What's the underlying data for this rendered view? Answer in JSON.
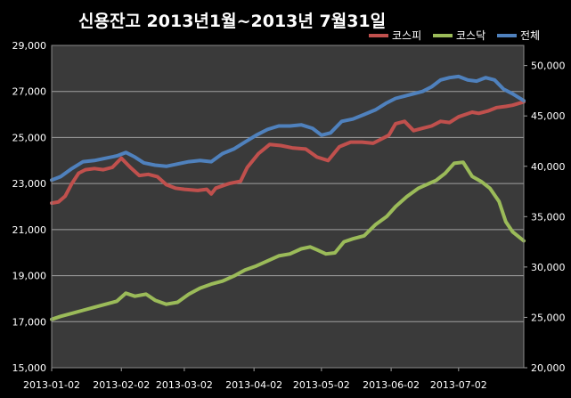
{
  "chart_data": {
    "type": "line",
    "title": "신용잔고 2013년1월~2013년 7월31일",
    "x_tick_labels": [
      "2013-01-02",
      "2013-02-02",
      "2013-03-02",
      "2013-04-02",
      "2013-05-02",
      "2013-06-02",
      "2013-07-02"
    ],
    "x_range": [
      "2013-01-02",
      "2013-07-31"
    ],
    "y_left": {
      "ticks": [
        "15,000",
        "17,000",
        "19,000",
        "21,000",
        "23,000",
        "25,000",
        "27,000",
        "29,000"
      ],
      "range": [
        15000,
        29000
      ]
    },
    "y_right": {
      "ticks": [
        "20,000",
        "25,000",
        "30,000",
        "35,000",
        "40,000",
        "45,000",
        "50,000"
      ],
      "range": [
        20000,
        52000
      ]
    },
    "grid": true,
    "legend_position": "top-right",
    "colors": {
      "background": "#000000",
      "plot_area": "#3a3a3a",
      "grid": "#a0a0a0",
      "text": "#ffffff"
    },
    "series": [
      {
        "name": "코스피",
        "axis": "left",
        "color": "#c0504d",
        "points": [
          [
            "2013-01-02",
            22150
          ],
          [
            "2013-01-05",
            22200
          ],
          [
            "2013-01-08",
            22450
          ],
          [
            "2013-01-11",
            23000
          ],
          [
            "2013-01-14",
            23450
          ],
          [
            "2013-01-17",
            23600
          ],
          [
            "2013-01-21",
            23650
          ],
          [
            "2013-01-25",
            23600
          ],
          [
            "2013-01-29",
            23700
          ],
          [
            "2013-02-02",
            24100
          ],
          [
            "2013-02-06",
            23700
          ],
          [
            "2013-02-10",
            23350
          ],
          [
            "2013-02-14",
            23400
          ],
          [
            "2013-02-18",
            23300
          ],
          [
            "2013-02-22",
            22950
          ],
          [
            "2013-02-26",
            22800
          ],
          [
            "2013-03-02",
            22750
          ],
          [
            "2013-03-08",
            22700
          ],
          [
            "2013-03-12",
            22750
          ],
          [
            "2013-03-14",
            22550
          ],
          [
            "2013-03-16",
            22800
          ],
          [
            "2013-03-22",
            23000
          ],
          [
            "2013-03-27",
            23100
          ],
          [
            "2013-03-30",
            23700
          ],
          [
            "2013-04-04",
            24300
          ],
          [
            "2013-04-09",
            24700
          ],
          [
            "2013-04-14",
            24650
          ],
          [
            "2013-04-19",
            24550
          ],
          [
            "2013-04-25",
            24500
          ],
          [
            "2013-04-30",
            24150
          ],
          [
            "2013-05-05",
            24000
          ],
          [
            "2013-05-10",
            24600
          ],
          [
            "2013-05-15",
            24800
          ],
          [
            "2013-05-20",
            24800
          ],
          [
            "2013-05-25",
            24750
          ],
          [
            "2013-05-28",
            24900
          ],
          [
            "2013-06-01",
            25100
          ],
          [
            "2013-06-04",
            25600
          ],
          [
            "2013-06-08",
            25700
          ],
          [
            "2013-06-12",
            25300
          ],
          [
            "2013-06-16",
            25400
          ],
          [
            "2013-06-20",
            25500
          ],
          [
            "2013-06-24",
            25700
          ],
          [
            "2013-06-28",
            25650
          ],
          [
            "2013-07-02",
            25900
          ],
          [
            "2013-07-05",
            26000
          ],
          [
            "2013-07-08",
            26100
          ],
          [
            "2013-07-11",
            26050
          ],
          [
            "2013-07-15",
            26150
          ],
          [
            "2013-07-19",
            26300
          ],
          [
            "2013-07-23",
            26350
          ],
          [
            "2013-07-26",
            26400
          ],
          [
            "2013-07-31",
            26550
          ]
        ]
      },
      {
        "name": "코스닥",
        "axis": "right",
        "color": "#9bbb59",
        "points": [
          [
            "2013-01-02",
            24800
          ],
          [
            "2013-01-06",
            25100
          ],
          [
            "2013-01-11",
            25400
          ],
          [
            "2013-01-16",
            25700
          ],
          [
            "2013-01-21",
            26000
          ],
          [
            "2013-01-26",
            26300
          ],
          [
            "2013-01-31",
            26600
          ],
          [
            "2013-02-04",
            27400
          ],
          [
            "2013-02-08",
            27100
          ],
          [
            "2013-02-13",
            27300
          ],
          [
            "2013-02-17",
            26700
          ],
          [
            "2013-02-22",
            26300
          ],
          [
            "2013-02-27",
            26500
          ],
          [
            "2013-03-04",
            27300
          ],
          [
            "2013-03-09",
            27900
          ],
          [
            "2013-03-14",
            28300
          ],
          [
            "2013-03-19",
            28600
          ],
          [
            "2013-03-24",
            29100
          ],
          [
            "2013-03-29",
            29700
          ],
          [
            "2013-04-03",
            30100
          ],
          [
            "2013-04-08",
            30600
          ],
          [
            "2013-04-13",
            31100
          ],
          [
            "2013-04-18",
            31300
          ],
          [
            "2013-04-23",
            31800
          ],
          [
            "2013-04-27",
            32000
          ],
          [
            "2013-04-30",
            31700
          ],
          [
            "2013-05-04",
            31300
          ],
          [
            "2013-05-08",
            31400
          ],
          [
            "2013-05-12",
            32500
          ],
          [
            "2013-05-16",
            32800
          ],
          [
            "2013-05-21",
            33100
          ],
          [
            "2013-05-26",
            34200
          ],
          [
            "2013-05-31",
            35000
          ],
          [
            "2013-06-04",
            36000
          ],
          [
            "2013-06-09",
            37000
          ],
          [
            "2013-06-14",
            37800
          ],
          [
            "2013-06-18",
            38200
          ],
          [
            "2013-06-22",
            38600
          ],
          [
            "2013-06-26",
            39300
          ],
          [
            "2013-06-30",
            40300
          ],
          [
            "2013-07-04",
            40400
          ],
          [
            "2013-07-08",
            39000
          ],
          [
            "2013-07-12",
            38500
          ],
          [
            "2013-07-16",
            37800
          ],
          [
            "2013-07-20",
            36500
          ],
          [
            "2013-07-23",
            34500
          ],
          [
            "2013-07-26",
            33500
          ],
          [
            "2013-07-31",
            32600
          ]
        ]
      },
      {
        "name": "전체",
        "axis": "left",
        "color": "#4f81bd",
        "points": [
          [
            "2013-01-02",
            23150
          ],
          [
            "2013-01-06",
            23300
          ],
          [
            "2013-01-11",
            23650
          ],
          [
            "2013-01-16",
            23950
          ],
          [
            "2013-01-21",
            24000
          ],
          [
            "2013-01-26",
            24100
          ],
          [
            "2013-01-31",
            24200
          ],
          [
            "2013-02-04",
            24350
          ],
          [
            "2013-02-08",
            24150
          ],
          [
            "2013-02-12",
            23900
          ],
          [
            "2013-02-17",
            23800
          ],
          [
            "2013-02-22",
            23750
          ],
          [
            "2013-02-27",
            23850
          ],
          [
            "2013-03-04",
            23950
          ],
          [
            "2013-03-09",
            24000
          ],
          [
            "2013-03-14",
            23950
          ],
          [
            "2013-03-19",
            24300
          ],
          [
            "2013-03-24",
            24500
          ],
          [
            "2013-03-29",
            24800
          ],
          [
            "2013-04-03",
            25100
          ],
          [
            "2013-04-08",
            25350
          ],
          [
            "2013-04-13",
            25500
          ],
          [
            "2013-04-18",
            25500
          ],
          [
            "2013-04-23",
            25550
          ],
          [
            "2013-04-28",
            25400
          ],
          [
            "2013-05-02",
            25100
          ],
          [
            "2013-05-06",
            25200
          ],
          [
            "2013-05-11",
            25700
          ],
          [
            "2013-05-16",
            25800
          ],
          [
            "2013-05-21",
            26000
          ],
          [
            "2013-05-26",
            26200
          ],
          [
            "2013-05-31",
            26500
          ],
          [
            "2013-06-04",
            26700
          ],
          [
            "2013-06-08",
            26800
          ],
          [
            "2013-06-12",
            26900
          ],
          [
            "2013-06-16",
            27000
          ],
          [
            "2013-06-20",
            27200
          ],
          [
            "2013-06-24",
            27500
          ],
          [
            "2013-06-28",
            27600
          ],
          [
            "2013-07-02",
            27650
          ],
          [
            "2013-07-06",
            27500
          ],
          [
            "2013-07-10",
            27450
          ],
          [
            "2013-07-14",
            27600
          ],
          [
            "2013-07-18",
            27500
          ],
          [
            "2013-07-22",
            27100
          ],
          [
            "2013-07-26",
            26900
          ],
          [
            "2013-07-31",
            26600
          ]
        ]
      }
    ]
  }
}
